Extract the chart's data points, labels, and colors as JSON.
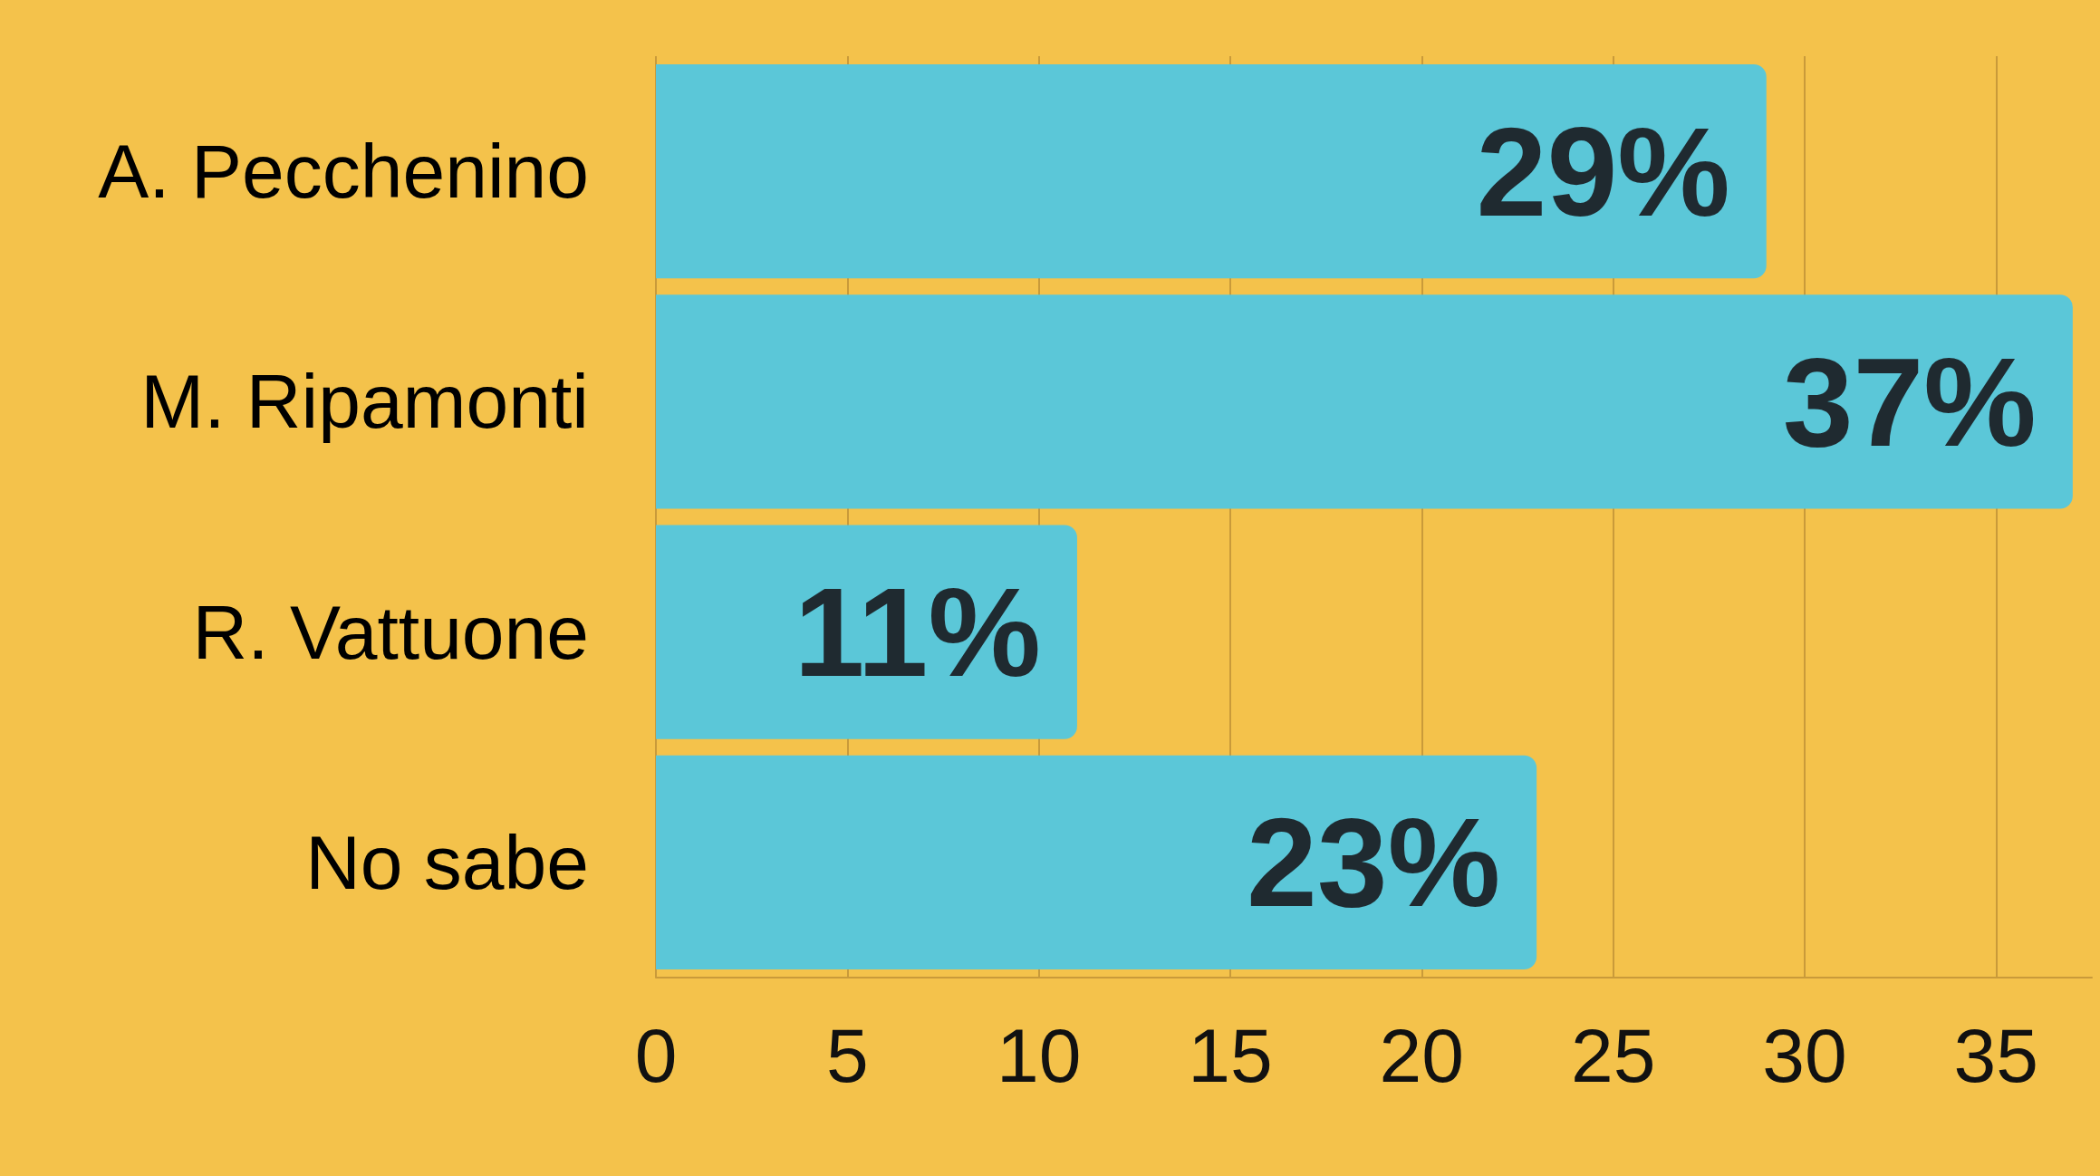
{
  "chart_data": {
    "type": "bar",
    "orientation": "horizontal",
    "categories": [
      "A. Pecchenino",
      "M. Ripamonti",
      "R. Vattuone",
      "No sabe"
    ],
    "values": [
      29,
      37,
      11,
      23
    ],
    "value_labels": [
      "29%",
      "37%",
      "11%",
      "23%"
    ],
    "color": "#5bc7d8",
    "xlim": [
      0,
      37.5
    ],
    "xticks": [
      0,
      5,
      10,
      15,
      20,
      25,
      30,
      35
    ],
    "grid": "x"
  }
}
